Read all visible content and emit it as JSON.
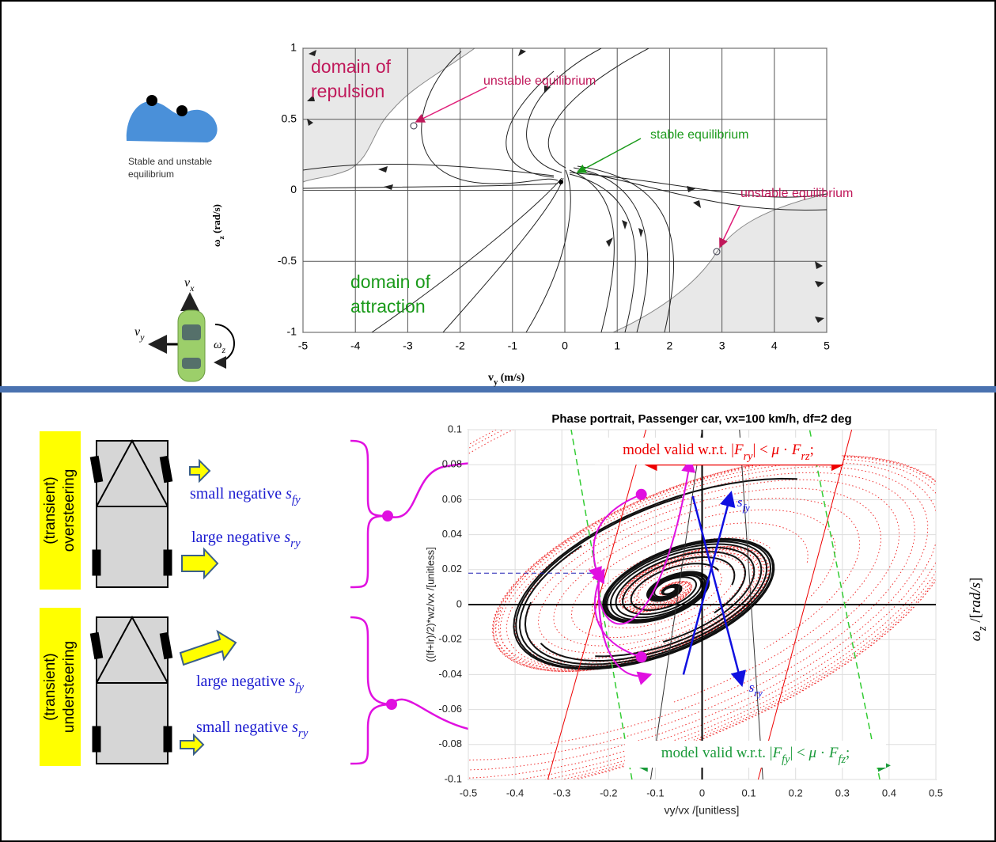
{
  "top": {
    "legend_text": [
      "Stable and unstable",
      "equilibrium"
    ],
    "car_labels": {
      "vx": [
        {
          "t": "v"
        },
        {
          "t": "x",
          "sub": true
        }
      ],
      "vy": [
        {
          "t": "v"
        },
        {
          "t": "y",
          "sub": true
        }
      ],
      "wz": [
        {
          "t": "ω"
        },
        {
          "t": "z",
          "sub": true
        }
      ]
    },
    "plot": {
      "xlim": [
        -5,
        5
      ],
      "ylim": [
        -1,
        1
      ],
      "xticks": [
        -5,
        -4,
        -3,
        -2,
        -1,
        0,
        1,
        2,
        3,
        4,
        5
      ],
      "yticks": [
        -1,
        -0.5,
        0,
        0.5,
        1
      ],
      "xlabel": [
        {
          "t": "v"
        },
        {
          "t": "y",
          "sub": true
        },
        {
          "t": " (m/s)"
        }
      ],
      "ylabel": [
        {
          "t": "ω"
        },
        {
          "t": "z",
          "sub": true
        },
        {
          "t": " (rad/s)"
        }
      ],
      "repulsion": [
        "domain of",
        "repulsion"
      ],
      "attraction": [
        "domain of",
        "attraction"
      ],
      "unstable_1": "unstable equilibrium",
      "unstable_2": "unstable equilibrium",
      "stable": "stable equilibrium"
    }
  },
  "bottom": {
    "oversteering": [
      "(transient)",
      "oversteering"
    ],
    "understeering": [
      "(transient)",
      "understeering"
    ],
    "over_front": [
      {
        "t": "small negative "
      },
      {
        "t": "s",
        "it": true
      },
      {
        "t": "fy",
        "sub": true,
        "it": true
      }
    ],
    "over_rear": [
      {
        "t": "large negative "
      },
      {
        "t": "s",
        "it": true
      },
      {
        "t": "ry",
        "sub": true,
        "it": true
      }
    ],
    "under_front": [
      {
        "t": "large negative "
      },
      {
        "t": "s",
        "it": true
      },
      {
        "t": "fy",
        "sub": true,
        "it": true
      }
    ],
    "under_rear": [
      {
        "t": "small negative "
      },
      {
        "t": "s",
        "it": true
      },
      {
        "t": "ry",
        "sub": true,
        "it": true
      }
    ],
    "right_label": [
      {
        "t": "ω",
        "it": true
      },
      {
        "t": "z",
        "sub": true,
        "it": true
      },
      {
        "t": " /["
      },
      {
        "t": "rad/s",
        "it": true
      },
      {
        "t": "]"
      }
    ],
    "plot": {
      "title": "Phase portrait, Passenger car, vx=100 km/h, df=2 deg",
      "xlabel": "vy/vx /[unitless]",
      "ylabel": "((lf+lr)/2)*wz/vx /[unitless]",
      "xlim": [
        -0.5,
        0.5
      ],
      "ylim": [
        -0.1,
        0.1
      ],
      "xticks": [
        -0.5,
        -0.4,
        -0.3,
        -0.2,
        -0.1,
        0,
        0.1,
        0.2,
        0.3,
        0.4,
        0.5
      ],
      "yticks": [
        -0.1,
        -0.08,
        -0.06,
        -0.04,
        -0.02,
        0,
        0.02,
        0.04,
        0.06,
        0.08,
        0.1
      ],
      "grid": true,
      "rear_valid": [
        {
          "t": "model valid w.r.t. |"
        },
        {
          "t": "F",
          "it": true
        },
        {
          "t": "ry",
          "sub": true,
          "it": true
        },
        {
          "t": "| < "
        },
        {
          "t": "μ",
          "it": true
        },
        {
          "t": " · "
        },
        {
          "t": "F",
          "it": true
        },
        {
          "t": "rz",
          "sub": true,
          "it": true
        },
        {
          "t": ";"
        }
      ],
      "front_valid": [
        {
          "t": "model valid w.r.t. |"
        },
        {
          "t": "F",
          "it": true
        },
        {
          "t": "fy",
          "sub": true,
          "it": true
        },
        {
          "t": "| < "
        },
        {
          "t": "μ",
          "it": true
        },
        {
          "t": " · "
        },
        {
          "t": "F",
          "it": true
        },
        {
          "t": "fz",
          "sub": true,
          "it": true
        },
        {
          "t": ";"
        }
      ],
      "s_fy": [
        {
          "t": "s",
          "it": true
        },
        {
          "t": "fy",
          "sub": true,
          "it": true
        }
      ],
      "s_ry": [
        {
          "t": "s",
          "it": true
        },
        {
          "t": "ry",
          "sub": true,
          "it": true
        }
      ]
    }
  }
}
